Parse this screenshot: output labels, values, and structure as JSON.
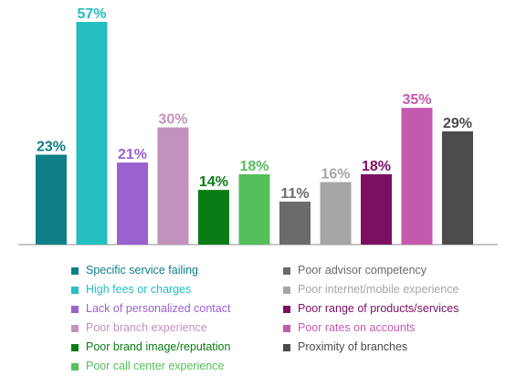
{
  "chart_data": {
    "type": "bar",
    "title": "",
    "xlabel": "",
    "ylabel": "",
    "ylim": [
      0,
      60
    ],
    "grid": false,
    "legend": "bottom",
    "categories": [
      "Specific service failing",
      "High fees or charges",
      "Lack of personalized contact",
      "Poor branch experience",
      "Poor brand image/reputation",
      "Poor call center experience",
      "Poor advisor competency",
      "Poor internet/mobile experience",
      "Poor range of products/services",
      "Poor rates on accounts",
      "Proximity of branches"
    ],
    "values": [
      23,
      57,
      21,
      30,
      14,
      18,
      11,
      16,
      18,
      35,
      29
    ],
    "value_labels": [
      "23%",
      "57%",
      "21%",
      "30%",
      "14%",
      "18%",
      "11%",
      "16%",
      "18%",
      "35%",
      "29%"
    ],
    "colors": [
      "#0e7f86",
      "#24bfc0",
      "#9a61cf",
      "#c392bc",
      "#0a7c15",
      "#55bf5c",
      "#6b6b6b",
      "#a6a6a6",
      "#7d0f63",
      "#c35aae",
      "#4b4b4b"
    ]
  },
  "legend": {
    "left": [
      {
        "label": "Specific service failing",
        "color": "#0e7f86"
      },
      {
        "label": "High fees or charges",
        "color": "#24bfc0"
      },
      {
        "label": "Lack of personalized contact",
        "color": "#9a61cf"
      },
      {
        "label": "Poor branch experience",
        "color": "#c392bc"
      },
      {
        "label": "Poor brand image/reputation",
        "color": "#0a7c15"
      },
      {
        "label": "Poor call center experience",
        "color": "#55bf5c"
      }
    ],
    "right": [
      {
        "label": "Poor advisor competency",
        "color": "#6b6b6b"
      },
      {
        "label": "Poor internet/mobile experience",
        "color": "#a6a6a6"
      },
      {
        "label": "Poor range of products/services",
        "color": "#7d0f63"
      },
      {
        "label": "Poor rates on accounts",
        "color": "#c35aae"
      },
      {
        "label": "Proximity of branches",
        "color": "#4b4b4b"
      }
    ]
  }
}
